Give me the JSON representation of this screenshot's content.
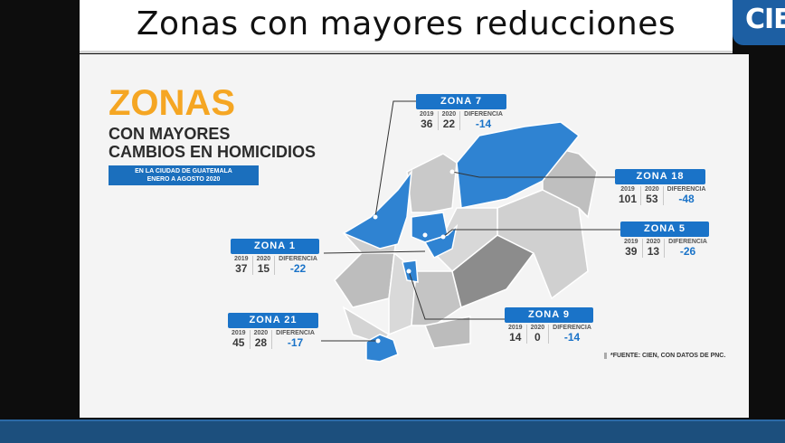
{
  "title": "Zonas con mayores reducciones",
  "logo_text": "CIE",
  "heading": {
    "big": "ZONAS",
    "line1": "CON MAYORES",
    "line2": "CAMBIOS EN HOMICIDIOS",
    "badge_line1": "EN LA CIUDAD DE GUATEMALA",
    "badge_line2": "ENERO A AGOSTO 2020"
  },
  "table_headers": {
    "y2019": "2019",
    "y2020": "2020",
    "diff": "DIFERENCIA"
  },
  "zones": [
    {
      "label": "ZONA 7",
      "v2019": "36",
      "v2020": "22",
      "diff": "-14"
    },
    {
      "label": "ZONA 18",
      "v2019": "101",
      "v2020": "53",
      "diff": "-48"
    },
    {
      "label": "ZONA 5",
      "v2019": "39",
      "v2020": "13",
      "diff": "-26"
    },
    {
      "label": "ZONA 1",
      "v2019": "37",
      "v2020": "15",
      "diff": "-22"
    },
    {
      "label": "ZONA 9",
      "v2019": "14",
      "v2020": "0",
      "diff": "-14"
    },
    {
      "label": "ZONA 21",
      "v2019": "45",
      "v2020": "28",
      "diff": "-17"
    }
  ],
  "source": "*FUENTE: CIEN, CON DATOS DE PNC.",
  "colors": {
    "accent": "#f5a623",
    "blue": "#1a73c8",
    "bottom_bar": "#1c4f7d"
  }
}
